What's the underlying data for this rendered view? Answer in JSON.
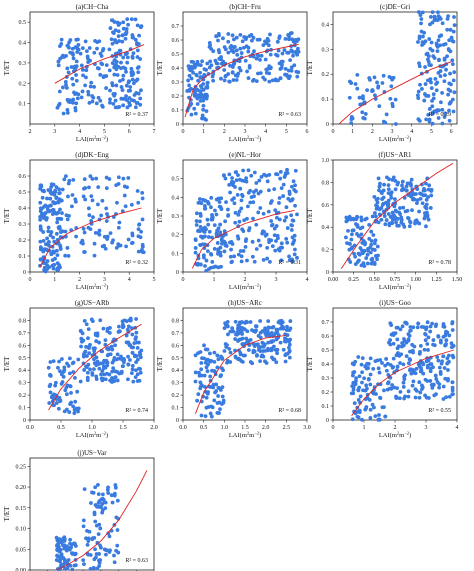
{
  "figure": {
    "y_axis_label": "T/ET",
    "x_axis_label_base": "LAI(m",
    "x_axis_label_sup1": "2",
    "x_axis_label_mid": "m",
    "x_axis_label_sup2": "−2",
    "x_axis_label_end": ")",
    "point_color": "#3a7be0",
    "curve_color": "#e02020"
  },
  "chart_data": [
    {
      "type": "scatter",
      "title": "(a)CH−Cha",
      "xlim": [
        2,
        7
      ],
      "ylim": [
        0,
        0.55
      ],
      "x_ticks": [
        "2",
        "3",
        "4",
        "5",
        "6",
        "7"
      ],
      "y_ticks": [
        "0.1",
        "0.2",
        "0.3",
        "0.4",
        "0.5"
      ],
      "r2_label": "R² = 0.37",
      "fit_curve": [
        [
          3,
          0.2
        ],
        [
          4,
          0.27
        ],
        [
          5,
          0.32
        ],
        [
          6,
          0.36
        ],
        [
          6.6,
          0.39
        ]
      ],
      "clusters": [
        {
          "x": [
            3.1,
            5.1
          ],
          "y": [
            0.05,
            0.42
          ],
          "n": 120
        },
        {
          "x": [
            5.2,
            6.5
          ],
          "y": [
            0.08,
            0.52
          ],
          "n": 140
        }
      ]
    },
    {
      "type": "scatter",
      "title": "(b)CH−Fru",
      "xlim": [
        0,
        6
      ],
      "ylim": [
        0,
        0.8
      ],
      "x_ticks": [
        "0",
        "1",
        "2",
        "3",
        "4",
        "5",
        "6"
      ],
      "y_ticks": [
        "0",
        "0.1",
        "0.2",
        "0.3",
        "0.4",
        "0.5",
        "0.6",
        "0.7"
      ],
      "r2_label": "R² = 0.63",
      "fit_curve": [
        [
          0.1,
          0.05
        ],
        [
          0.5,
          0.25
        ],
        [
          1,
          0.33
        ],
        [
          2,
          0.42
        ],
        [
          3,
          0.48
        ],
        [
          4,
          0.52
        ],
        [
          5,
          0.55
        ],
        [
          5.6,
          0.57
        ]
      ],
      "clusters": [
        {
          "x": [
            0.2,
            1.2
          ],
          "y": [
            0.02,
            0.45
          ],
          "n": 90
        },
        {
          "x": [
            1.2,
            5.6
          ],
          "y": [
            0.3,
            0.65
          ],
          "n": 200
        }
      ]
    },
    {
      "type": "scatter",
      "title": "(c)DE−Gri",
      "xlim": [
        0,
        6.3
      ],
      "ylim": [
        0,
        0.45
      ],
      "x_ticks": [
        "0",
        "1",
        "2",
        "3",
        "4",
        "5",
        "6"
      ],
      "y_ticks": [
        "0",
        "0.1",
        "0.2",
        "0.3",
        "0.4"
      ],
      "r2_label": "R² = 0.29",
      "fit_curve": [
        [
          0.3,
          0.0
        ],
        [
          1,
          0.05
        ],
        [
          2,
          0.1
        ],
        [
          3,
          0.14
        ],
        [
          4,
          0.18
        ],
        [
          5,
          0.22
        ],
        [
          6,
          0.25
        ]
      ],
      "clusters": [
        {
          "x": [
            0.8,
            3.2
          ],
          "y": [
            0.0,
            0.2
          ],
          "n": 50
        },
        {
          "x": [
            4.3,
            6.2
          ],
          "y": [
            0.0,
            0.45
          ],
          "n": 150
        }
      ]
    },
    {
      "type": "scatter",
      "title": "(d)DK−Eng",
      "xlim": [
        0,
        5
      ],
      "ylim": [
        0,
        0.7
      ],
      "x_ticks": [
        "0",
        "1",
        "2",
        "3",
        "4",
        "5"
      ],
      "y_ticks": [
        "0",
        "0.1",
        "0.2",
        "0.3",
        "0.4",
        "0.5",
        "0.6"
      ],
      "r2_label": "R² = 0.32",
      "fit_curve": [
        [
          0.4,
          0.03
        ],
        [
          0.8,
          0.15
        ],
        [
          1.5,
          0.24
        ],
        [
          2.5,
          0.31
        ],
        [
          3.5,
          0.36
        ],
        [
          4.5,
          0.4
        ]
      ],
      "clusters": [
        {
          "x": [
            0.4,
            1.3
          ],
          "y": [
            0.0,
            0.55
          ],
          "n": 150
        },
        {
          "x": [
            1.3,
            4.6
          ],
          "y": [
            0.1,
            0.6
          ],
          "n": 120
        }
      ]
    },
    {
      "type": "scatter",
      "title": "(e)NL−Hor",
      "xlim": [
        0,
        4
      ],
      "ylim": [
        0,
        0.6
      ],
      "x_ticks": [
        "0",
        "1",
        "2",
        "3",
        "4"
      ],
      "y_ticks": [
        "0",
        "0.1",
        "0.2",
        "0.3",
        "0.4",
        "0.5"
      ],
      "r2_label": "R² = 0.31",
      "fit_curve": [
        [
          0.3,
          0.02
        ],
        [
          0.6,
          0.12
        ],
        [
          1,
          0.18
        ],
        [
          2,
          0.26
        ],
        [
          3,
          0.31
        ],
        [
          3.6,
          0.33
        ]
      ],
      "clusters": [
        {
          "x": [
            0.4,
            1.3
          ],
          "y": [
            0.0,
            0.4
          ],
          "n": 110
        },
        {
          "x": [
            1.3,
            3.7
          ],
          "y": [
            0.05,
            0.55
          ],
          "n": 200
        }
      ]
    },
    {
      "type": "scatter",
      "title": "(f)US−AR1",
      "xlim": [
        0,
        1.5
      ],
      "ylim": [
        0,
        1.0
      ],
      "x_ticks": [
        "0.00",
        "0.25",
        "0.50",
        "0.75",
        "1.00",
        "1.25",
        "1.50"
      ],
      "y_ticks": [
        "0",
        "0.2",
        "0.4",
        "0.6",
        "0.8",
        "1.0"
      ],
      "r2_label": "R² = 0.78",
      "fit_curve": [
        [
          0.1,
          0.03
        ],
        [
          0.3,
          0.25
        ],
        [
          0.5,
          0.45
        ],
        [
          0.75,
          0.62
        ],
        [
          1.0,
          0.75
        ],
        [
          1.25,
          0.88
        ],
        [
          1.45,
          0.97
        ]
      ],
      "clusters": [
        {
          "x": [
            0.15,
            0.55
          ],
          "y": [
            0.05,
            0.5
          ],
          "n": 90
        },
        {
          "x": [
            0.5,
            1.2
          ],
          "y": [
            0.4,
            0.85
          ],
          "n": 170
        }
      ]
    },
    {
      "type": "scatter",
      "title": "(g)US−ARb",
      "xlim": [
        0,
        2
      ],
      "ylim": [
        0,
        0.9
      ],
      "x_ticks": [
        "0.0",
        "0.5",
        "1.0",
        "1.5",
        "2.0"
      ],
      "y_ticks": [
        "0",
        "0.1",
        "0.2",
        "0.3",
        "0.4",
        "0.5",
        "0.6",
        "0.7",
        "0.8"
      ],
      "r2_label": "R² = 0.74",
      "fit_curve": [
        [
          0.3,
          0.08
        ],
        [
          0.5,
          0.25
        ],
        [
          0.8,
          0.42
        ],
        [
          1.1,
          0.55
        ],
        [
          1.4,
          0.65
        ],
        [
          1.8,
          0.77
        ]
      ],
      "clusters": [
        {
          "x": [
            0.3,
            0.8
          ],
          "y": [
            0.05,
            0.5
          ],
          "n": 70
        },
        {
          "x": [
            0.8,
            1.8
          ],
          "y": [
            0.3,
            0.82
          ],
          "n": 190
        }
      ]
    },
    {
      "type": "scatter",
      "title": "(h)US−ARc",
      "xlim": [
        0,
        3
      ],
      "ylim": [
        0,
        0.9
      ],
      "x_ticks": [
        "0.0",
        "0.5",
        "1.0",
        "1.5",
        "2.0",
        "2.5",
        "3.0"
      ],
      "y_ticks": [
        "0",
        "0.1",
        "0.2",
        "0.3",
        "0.4",
        "0.5",
        "0.6",
        "0.7",
        "0.8"
      ],
      "r2_label": "R² = 0.68",
      "fit_curve": [
        [
          0.3,
          0.05
        ],
        [
          0.5,
          0.22
        ],
        [
          1.0,
          0.48
        ],
        [
          1.5,
          0.6
        ],
        [
          2.0,
          0.66
        ],
        [
          2.5,
          0.68
        ]
      ],
      "clusters": [
        {
          "x": [
            0.3,
            1.0
          ],
          "y": [
            0.02,
            0.6
          ],
          "n": 90
        },
        {
          "x": [
            1.0,
            2.6
          ],
          "y": [
            0.45,
            0.8
          ],
          "n": 190
        }
      ]
    },
    {
      "type": "scatter",
      "title": "(i)US−Goo",
      "xlim": [
        0,
        4
      ],
      "ylim": [
        0,
        0.8
      ],
      "x_ticks": [
        "0",
        "1",
        "2",
        "3",
        "4"
      ],
      "y_ticks": [
        "0",
        "0.1",
        "0.2",
        "0.3",
        "0.4",
        "0.5",
        "0.6",
        "0.7"
      ],
      "r2_label": "R² = 0.55",
      "fit_curve": [
        [
          0.6,
          0.03
        ],
        [
          1.0,
          0.15
        ],
        [
          1.5,
          0.26
        ],
        [
          2.0,
          0.34
        ],
        [
          3.0,
          0.44
        ],
        [
          3.9,
          0.5
        ]
      ],
      "clusters": [
        {
          "x": [
            0.6,
            1.8
          ],
          "y": [
            0.0,
            0.45
          ],
          "n": 100
        },
        {
          "x": [
            1.8,
            3.9
          ],
          "y": [
            0.15,
            0.7
          ],
          "n": 220
        }
      ]
    },
    {
      "type": "scatter",
      "title": "(j)US−Var",
      "xlim": [
        0,
        3.5
      ],
      "ylim": [
        0,
        0.27
      ],
      "x_ticks": [
        "0.0",
        "0.5",
        "1.0",
        "1.5",
        "2.0",
        "2.5",
        "3.0",
        "3.5"
      ],
      "y_ticks": [
        "0.00",
        "0.05",
        "0.10",
        "0.15",
        "0.20",
        "0.25"
      ],
      "r2_label": "R² = 0.63",
      "fit_curve": [
        [
          0.75,
          0.0
        ],
        [
          1.0,
          0.01
        ],
        [
          1.5,
          0.035
        ],
        [
          2.0,
          0.07
        ],
        [
          2.5,
          0.12
        ],
        [
          3.0,
          0.19
        ],
        [
          3.3,
          0.24
        ]
      ],
      "clusters": [
        {
          "x": [
            0.75,
            1.3
          ],
          "y": [
            0.0,
            0.08
          ],
          "n": 80
        },
        {
          "x": [
            1.5,
            2.5
          ],
          "y": [
            0.0,
            0.21
          ],
          "n": 90
        }
      ]
    }
  ]
}
